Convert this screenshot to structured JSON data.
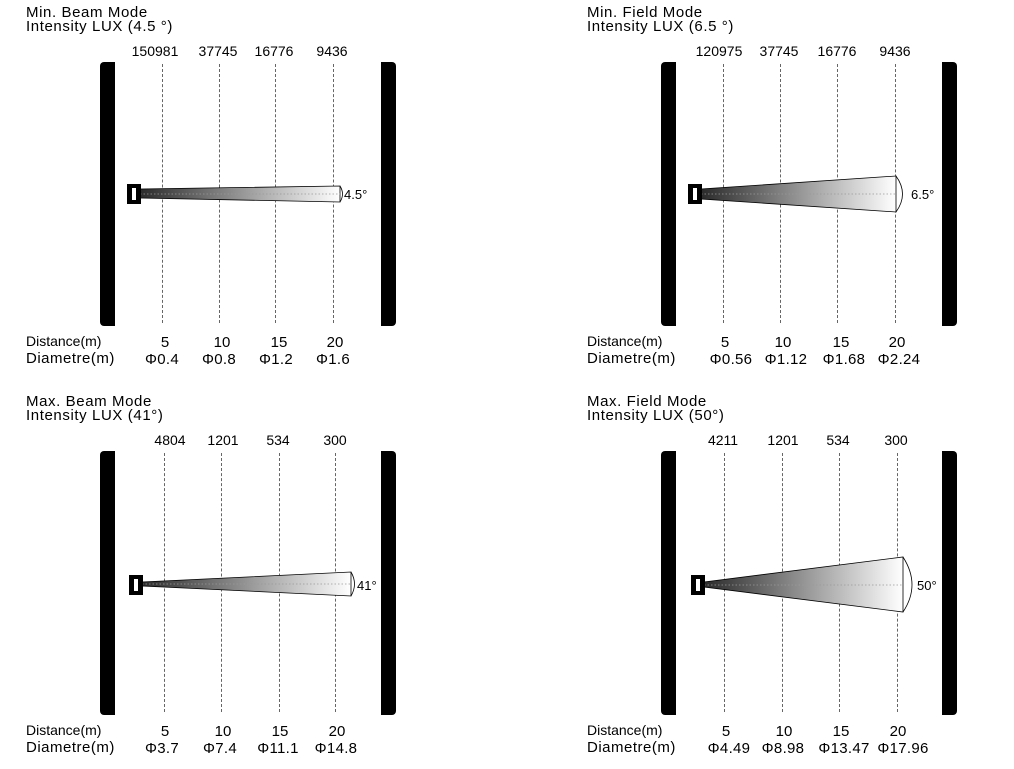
{
  "panels": [
    {
      "title_line1": "Min. Beam Mode",
      "title_line2": "Intensity LUX (4.5 °)",
      "lux": [
        "150981",
        "37745",
        "16776",
        "9436"
      ],
      "angle_label": "4.5°",
      "angle_deg": 4.5,
      "distance_label": "Distance(m)",
      "diametre_label": "Diametre(m)",
      "distances": [
        "5",
        "10",
        "15",
        "20"
      ],
      "diameters": [
        "Φ0.4",
        "Φ0.8",
        "Φ1.2",
        "Φ1.6"
      ]
    },
    {
      "title_line1": "Min. Field Mode",
      "title_line2": "Intensity LUX (6.5 °)",
      "lux": [
        "120975",
        "37745",
        "16776",
        "9436"
      ],
      "angle_label": "6.5°",
      "angle_deg": 6.5,
      "distance_label": "Distance(m)",
      "diametre_label": "Diametre(m)",
      "distances": [
        "5",
        "10",
        "15",
        "20"
      ],
      "diameters": [
        "Φ0.56",
        "Φ1.12",
        "Φ1.68",
        "Φ2.24"
      ]
    },
    {
      "title_line1": "Max. Beam Mode",
      "title_line2": "Intensity LUX (41°)",
      "lux": [
        "4804",
        "1201",
        "534",
        "300"
      ],
      "angle_label": "41°",
      "angle_deg": 41,
      "distance_label": "Distance(m)",
      "diametre_label": "Diametre(m)",
      "distances": [
        "5",
        "10",
        "15",
        "20"
      ],
      "diameters": [
        "Φ3.7",
        "Φ7.4",
        "Φ11.1",
        "Φ14.8"
      ]
    },
    {
      "title_line1": "Max. Field Mode",
      "title_line2": "Intensity LUX (50°)",
      "lux": [
        "4211",
        "1201",
        "534",
        "300"
      ],
      "angle_label": "50°",
      "angle_deg": 50,
      "distance_label": "Distance(m)",
      "diametre_label": "Diametre(m)",
      "distances": [
        "5",
        "10",
        "15",
        "20"
      ],
      "diameters": [
        "Φ4.49",
        "Φ8.98",
        "Φ13.47",
        "Φ17.96"
      ]
    }
  ]
}
